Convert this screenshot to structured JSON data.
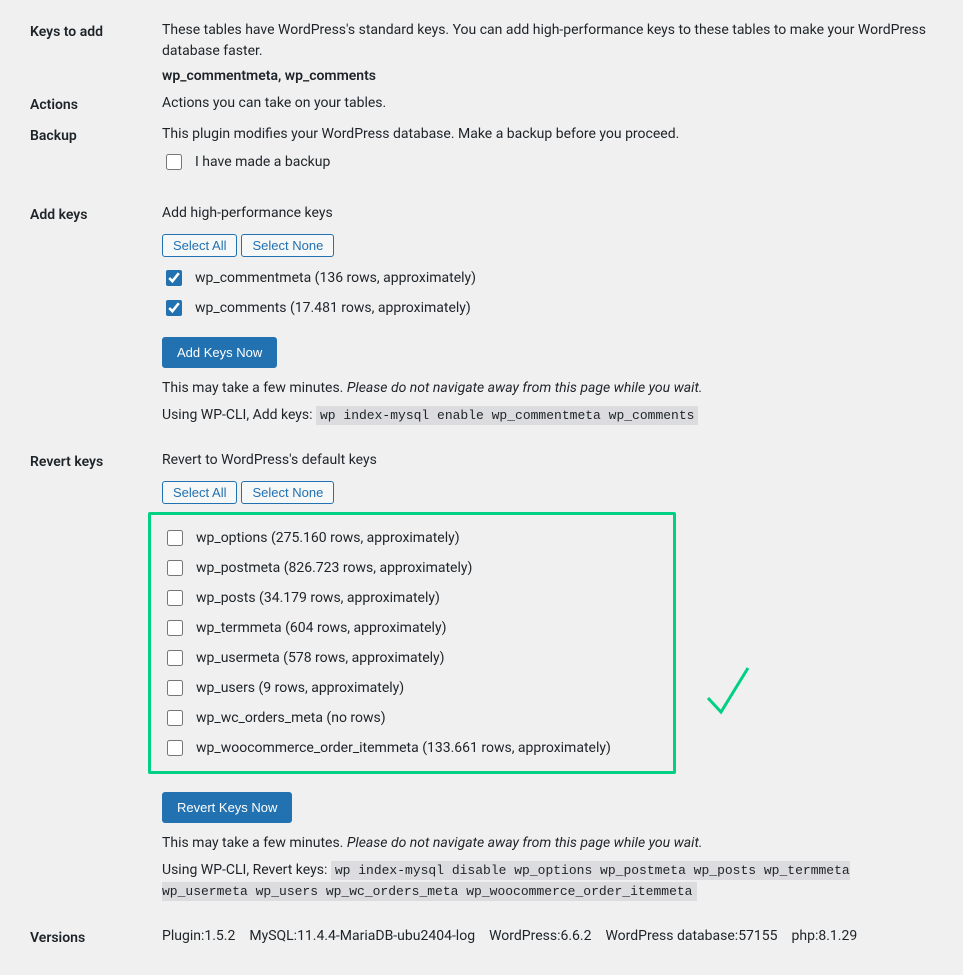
{
  "colors": {
    "background": "#f0f0f1",
    "text": "#1d2327",
    "primary": "#2271b1",
    "highlight_border": "#00d084",
    "code_bg": "#dcdcde"
  },
  "keys_to_add": {
    "label": "Keys to add",
    "desc": "These tables have WordPress's standard keys. You can add high-performance keys to these tables to make your WordPress database faster.",
    "tables": "wp_commentmeta, wp_comments"
  },
  "actions": {
    "label": "Actions",
    "desc": "Actions you can take on your tables."
  },
  "backup": {
    "label": "Backup",
    "desc": "This plugin modifies your WordPress database. Make a backup before you proceed.",
    "checkbox_label": "I have made a backup"
  },
  "add_keys": {
    "label": "Add keys",
    "desc": "Add high-performance keys",
    "select_all": "Select All",
    "select_none": "Select None",
    "tables": [
      {
        "label": "wp_commentmeta (136 rows, approximately)",
        "checked": true
      },
      {
        "label": "wp_comments (17.481 rows, approximately)",
        "checked": true
      }
    ],
    "button": "Add Keys Now",
    "wait_msg_plain": "This may take a few minutes. ",
    "wait_msg_italic": "Please do not navigate away from this page while you wait.",
    "cli_prefix": "Using WP-CLI, Add keys: ",
    "cli_cmd": "wp index-mysql enable wp_commentmeta wp_comments"
  },
  "revert_keys": {
    "label": "Revert keys",
    "desc": "Revert to WordPress's default keys",
    "select_all": "Select All",
    "select_none": "Select None",
    "tables": [
      {
        "label": "wp_options (275.160 rows, approximately)",
        "checked": false
      },
      {
        "label": "wp_postmeta (826.723 rows, approximately)",
        "checked": false
      },
      {
        "label": "wp_posts (34.179 rows, approximately)",
        "checked": false
      },
      {
        "label": "wp_termmeta (604 rows, approximately)",
        "checked": false
      },
      {
        "label": "wp_usermeta (578 rows, approximately)",
        "checked": false
      },
      {
        "label": "wp_users (9 rows, approximately)",
        "checked": false
      },
      {
        "label": "wp_wc_orders_meta (no rows)",
        "checked": false
      },
      {
        "label": "wp_woocommerce_order_itemmeta (133.661 rows, approximately)",
        "checked": false
      }
    ],
    "button": "Revert Keys Now",
    "wait_msg_plain": "This may take a few minutes. ",
    "wait_msg_italic": "Please do not navigate away from this page while you wait.",
    "cli_prefix": "Using WP-CLI, Revert keys: ",
    "cli_cmd": "wp index-mysql disable wp_options wp_postmeta wp_posts wp_termmeta wp_usermeta wp_users wp_wc_orders_meta wp_woocommerce_order_itemmeta"
  },
  "versions": {
    "label": "Versions",
    "items": [
      "Plugin:1.5.2",
      "MySQL:11.4.4-MariaDB-ubu2404-log",
      "WordPress:6.6.2",
      "WordPress database:57155",
      "php:8.1.29"
    ]
  }
}
